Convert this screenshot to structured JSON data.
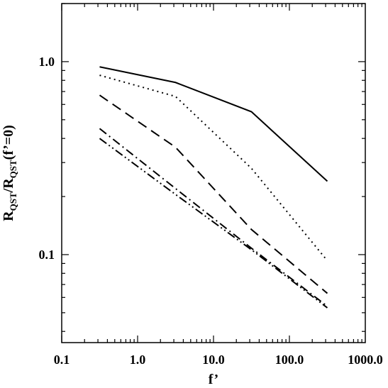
{
  "chart_data": {
    "type": "line",
    "xlabel": "f’",
    "ylabel": {
      "main": "R",
      "sub": "QST",
      "sep": "/R",
      "sub2": "QST",
      "tail": "(f’=0)"
    },
    "x_scale": "log",
    "y_scale": "log",
    "xlim": [
      0.1,
      1000.0
    ],
    "ylim": [
      0.035,
      2.0
    ],
    "x_ticks": [
      0.1,
      1.0,
      10.0,
      100.0,
      1000.0
    ],
    "x_tick_labels": [
      "0.1",
      "1.0",
      "10.0",
      "100.0",
      "1000.0"
    ],
    "y_ticks": [
      0.1,
      1.0
    ],
    "y_tick_labels": [
      "0.1",
      "1.0"
    ],
    "grid": false,
    "x": [
      0.316,
      3.16,
      31.6,
      316.0
    ],
    "series": [
      {
        "style": "solid",
        "values": [
          0.94,
          0.78,
          0.55,
          0.24
        ]
      },
      {
        "style": "dotted",
        "values": [
          0.85,
          0.66,
          0.28,
          0.093
        ]
      },
      {
        "style": "dashed",
        "values": [
          0.67,
          0.36,
          0.135,
          0.063
        ]
      },
      {
        "style": "dash-dot",
        "values": [
          0.45,
          0.22,
          0.108,
          0.054
        ]
      },
      {
        "style": "dash-dot-dot",
        "values": [
          0.4,
          0.205,
          0.106,
          0.053
        ]
      }
    ]
  }
}
